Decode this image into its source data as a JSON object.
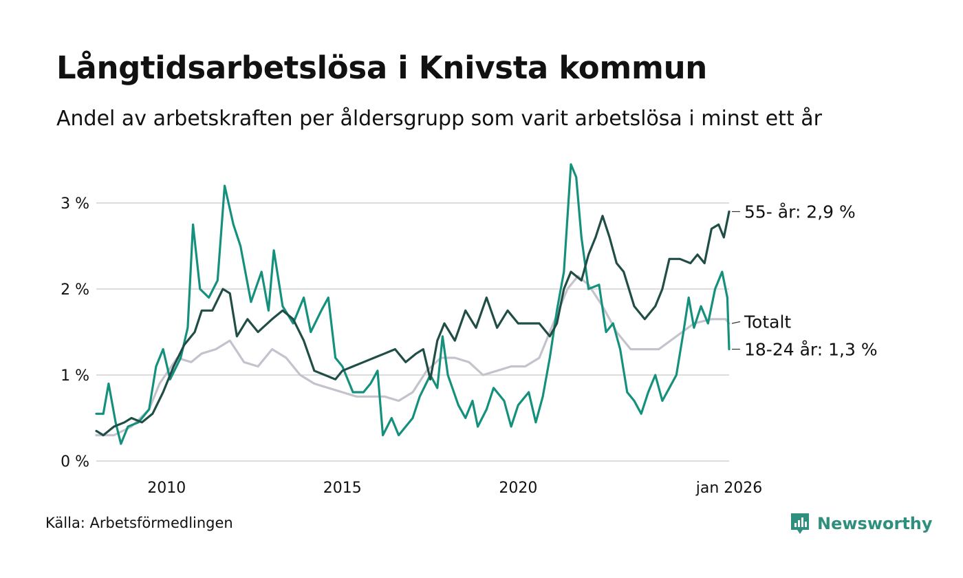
{
  "title": "Långtidsarbetslösa i Knivsta kommun",
  "subtitle": "Andel av arbetskraften per åldersgrupp som varit arbetslösa i minst ett år",
  "source": "Källa: Arbetsförmedlingen",
  "brand": {
    "name": "Newsworthy",
    "icon": "newsworthy-chart-logo-icon",
    "color": "#2f8f7e"
  },
  "chart_data": {
    "type": "line",
    "title": "Långtidsarbetslösa i Knivsta kommun",
    "xlabel": "",
    "ylabel": "",
    "xlim": [
      2008.0,
      2026.0
    ],
    "ylim": [
      0,
      3.5
    ],
    "y_ticks": [
      0,
      1,
      2,
      3
    ],
    "y_tick_labels": [
      "0 %",
      "1 %",
      "2 %",
      "3 %"
    ],
    "x_ticks": [
      2010,
      2015,
      2020,
      2026.0
    ],
    "x_tick_labels": [
      "2010",
      "2015",
      "2020",
      "jan 2026"
    ],
    "grid": "horizontal",
    "series": [
      {
        "name": "Totalt",
        "label": "Totalt",
        "color": "#c4c2cc",
        "points": [
          [
            2008.0,
            0.3
          ],
          [
            2008.5,
            0.3
          ],
          [
            2009.0,
            0.4
          ],
          [
            2009.5,
            0.6
          ],
          [
            2009.8,
            0.9
          ],
          [
            2010.3,
            1.2
          ],
          [
            2010.7,
            1.15
          ],
          [
            2011.0,
            1.25
          ],
          [
            2011.4,
            1.3
          ],
          [
            2011.8,
            1.4
          ],
          [
            2012.2,
            1.15
          ],
          [
            2012.6,
            1.1
          ],
          [
            2013.0,
            1.3
          ],
          [
            2013.4,
            1.2
          ],
          [
            2013.8,
            1.0
          ],
          [
            2014.2,
            0.9
          ],
          [
            2014.6,
            0.85
          ],
          [
            2015.0,
            0.8
          ],
          [
            2015.4,
            0.75
          ],
          [
            2015.8,
            0.75
          ],
          [
            2016.2,
            0.75
          ],
          [
            2016.6,
            0.7
          ],
          [
            2017.0,
            0.8
          ],
          [
            2017.4,
            1.05
          ],
          [
            2017.8,
            1.2
          ],
          [
            2018.2,
            1.2
          ],
          [
            2018.6,
            1.15
          ],
          [
            2019.0,
            1.0
          ],
          [
            2019.4,
            1.05
          ],
          [
            2019.8,
            1.1
          ],
          [
            2020.2,
            1.1
          ],
          [
            2020.6,
            1.2
          ],
          [
            2021.0,
            1.6
          ],
          [
            2021.4,
            2.0
          ],
          [
            2021.7,
            2.15
          ],
          [
            2022.0,
            2.05
          ],
          [
            2022.4,
            1.8
          ],
          [
            2022.8,
            1.5
          ],
          [
            2023.2,
            1.3
          ],
          [
            2023.6,
            1.3
          ],
          [
            2024.0,
            1.3
          ],
          [
            2024.5,
            1.45
          ],
          [
            2025.0,
            1.6
          ],
          [
            2025.5,
            1.65
          ],
          [
            2025.9,
            1.65
          ],
          [
            2026.0,
            1.6
          ]
        ]
      },
      {
        "name": "18-24 år",
        "label": "18-24 år: 1,3 %",
        "color": "#14907d",
        "points": [
          [
            2008.0,
            0.55
          ],
          [
            2008.2,
            0.55
          ],
          [
            2008.35,
            0.9
          ],
          [
            2008.55,
            0.45
          ],
          [
            2008.7,
            0.2
          ],
          [
            2008.9,
            0.4
          ],
          [
            2009.2,
            0.45
          ],
          [
            2009.5,
            0.6
          ],
          [
            2009.7,
            1.1
          ],
          [
            2009.9,
            1.3
          ],
          [
            2010.1,
            0.95
          ],
          [
            2010.4,
            1.2
          ],
          [
            2010.6,
            1.55
          ],
          [
            2010.75,
            2.75
          ],
          [
            2010.95,
            2.0
          ],
          [
            2011.2,
            1.9
          ],
          [
            2011.45,
            2.1
          ],
          [
            2011.65,
            3.2
          ],
          [
            2011.9,
            2.75
          ],
          [
            2012.1,
            2.5
          ],
          [
            2012.4,
            1.85
          ],
          [
            2012.7,
            2.2
          ],
          [
            2012.9,
            1.75
          ],
          [
            2013.05,
            2.45
          ],
          [
            2013.3,
            1.8
          ],
          [
            2013.6,
            1.6
          ],
          [
            2013.9,
            1.9
          ],
          [
            2014.1,
            1.5
          ],
          [
            2014.4,
            1.75
          ],
          [
            2014.6,
            1.9
          ],
          [
            2014.8,
            1.2
          ],
          [
            2015.0,
            1.1
          ],
          [
            2015.3,
            0.8
          ],
          [
            2015.6,
            0.8
          ],
          [
            2015.8,
            0.9
          ],
          [
            2016.0,
            1.05
          ],
          [
            2016.15,
            0.3
          ],
          [
            2016.4,
            0.5
          ],
          [
            2016.6,
            0.3
          ],
          [
            2016.8,
            0.4
          ],
          [
            2017.0,
            0.5
          ],
          [
            2017.2,
            0.75
          ],
          [
            2017.5,
            1.0
          ],
          [
            2017.7,
            0.85
          ],
          [
            2017.85,
            1.45
          ],
          [
            2018.0,
            1.0
          ],
          [
            2018.3,
            0.65
          ],
          [
            2018.5,
            0.5
          ],
          [
            2018.7,
            0.7
          ],
          [
            2018.85,
            0.4
          ],
          [
            2019.1,
            0.6
          ],
          [
            2019.3,
            0.85
          ],
          [
            2019.6,
            0.7
          ],
          [
            2019.8,
            0.4
          ],
          [
            2020.0,
            0.65
          ],
          [
            2020.3,
            0.8
          ],
          [
            2020.5,
            0.45
          ],
          [
            2020.7,
            0.75
          ],
          [
            2020.9,
            1.2
          ],
          [
            2021.1,
            1.75
          ],
          [
            2021.3,
            2.2
          ],
          [
            2021.5,
            3.45
          ],
          [
            2021.65,
            3.3
          ],
          [
            2021.8,
            2.6
          ],
          [
            2022.0,
            2.0
          ],
          [
            2022.3,
            2.05
          ],
          [
            2022.5,
            1.5
          ],
          [
            2022.7,
            1.6
          ],
          [
            2022.9,
            1.3
          ],
          [
            2023.1,
            0.8
          ],
          [
            2023.3,
            0.7
          ],
          [
            2023.5,
            0.55
          ],
          [
            2023.7,
            0.8
          ],
          [
            2023.9,
            1.0
          ],
          [
            2024.1,
            0.7
          ],
          [
            2024.3,
            0.85
          ],
          [
            2024.5,
            1.0
          ],
          [
            2024.7,
            1.5
          ],
          [
            2024.85,
            1.9
          ],
          [
            2025.0,
            1.55
          ],
          [
            2025.2,
            1.8
          ],
          [
            2025.4,
            1.6
          ],
          [
            2025.6,
            2.0
          ],
          [
            2025.8,
            2.2
          ],
          [
            2025.95,
            1.9
          ],
          [
            2026.0,
            1.3
          ]
        ]
      },
      {
        "name": "55- år",
        "label": "55- år: 2,9 %",
        "color": "#204e46",
        "points": [
          [
            2008.0,
            0.35
          ],
          [
            2008.2,
            0.3
          ],
          [
            2008.5,
            0.4
          ],
          [
            2008.8,
            0.45
          ],
          [
            2009.0,
            0.5
          ],
          [
            2009.3,
            0.45
          ],
          [
            2009.6,
            0.55
          ],
          [
            2009.9,
            0.8
          ],
          [
            2010.2,
            1.1
          ],
          [
            2010.5,
            1.35
          ],
          [
            2010.8,
            1.5
          ],
          [
            2011.0,
            1.75
          ],
          [
            2011.3,
            1.75
          ],
          [
            2011.6,
            2.0
          ],
          [
            2011.8,
            1.95
          ],
          [
            2012.0,
            1.45
          ],
          [
            2012.3,
            1.65
          ],
          [
            2012.6,
            1.5
          ],
          [
            2013.0,
            1.65
          ],
          [
            2013.3,
            1.75
          ],
          [
            2013.6,
            1.65
          ],
          [
            2013.9,
            1.4
          ],
          [
            2014.2,
            1.05
          ],
          [
            2014.5,
            1.0
          ],
          [
            2014.8,
            0.95
          ],
          [
            2015.0,
            1.05
          ],
          [
            2015.3,
            1.1
          ],
          [
            2015.6,
            1.15
          ],
          [
            2015.9,
            1.2
          ],
          [
            2016.2,
            1.25
          ],
          [
            2016.5,
            1.3
          ],
          [
            2016.8,
            1.15
          ],
          [
            2017.1,
            1.25
          ],
          [
            2017.3,
            1.3
          ],
          [
            2017.5,
            0.95
          ],
          [
            2017.7,
            1.4
          ],
          [
            2017.9,
            1.6
          ],
          [
            2018.2,
            1.4
          ],
          [
            2018.5,
            1.75
          ],
          [
            2018.8,
            1.55
          ],
          [
            2019.1,
            1.9
          ],
          [
            2019.4,
            1.55
          ],
          [
            2019.7,
            1.75
          ],
          [
            2020.0,
            1.6
          ],
          [
            2020.3,
            1.6
          ],
          [
            2020.6,
            1.6
          ],
          [
            2020.9,
            1.45
          ],
          [
            2021.1,
            1.6
          ],
          [
            2021.3,
            2.0
          ],
          [
            2021.5,
            2.2
          ],
          [
            2021.8,
            2.1
          ],
          [
            2022.0,
            2.4
          ],
          [
            2022.2,
            2.6
          ],
          [
            2022.4,
            2.85
          ],
          [
            2022.6,
            2.6
          ],
          [
            2022.8,
            2.3
          ],
          [
            2023.0,
            2.2
          ],
          [
            2023.3,
            1.8
          ],
          [
            2023.6,
            1.65
          ],
          [
            2023.9,
            1.8
          ],
          [
            2024.1,
            2.0
          ],
          [
            2024.3,
            2.35
          ],
          [
            2024.6,
            2.35
          ],
          [
            2024.9,
            2.3
          ],
          [
            2025.1,
            2.4
          ],
          [
            2025.3,
            2.3
          ],
          [
            2025.5,
            2.7
          ],
          [
            2025.7,
            2.75
          ],
          [
            2025.85,
            2.6
          ],
          [
            2026.0,
            2.9
          ]
        ]
      }
    ]
  }
}
